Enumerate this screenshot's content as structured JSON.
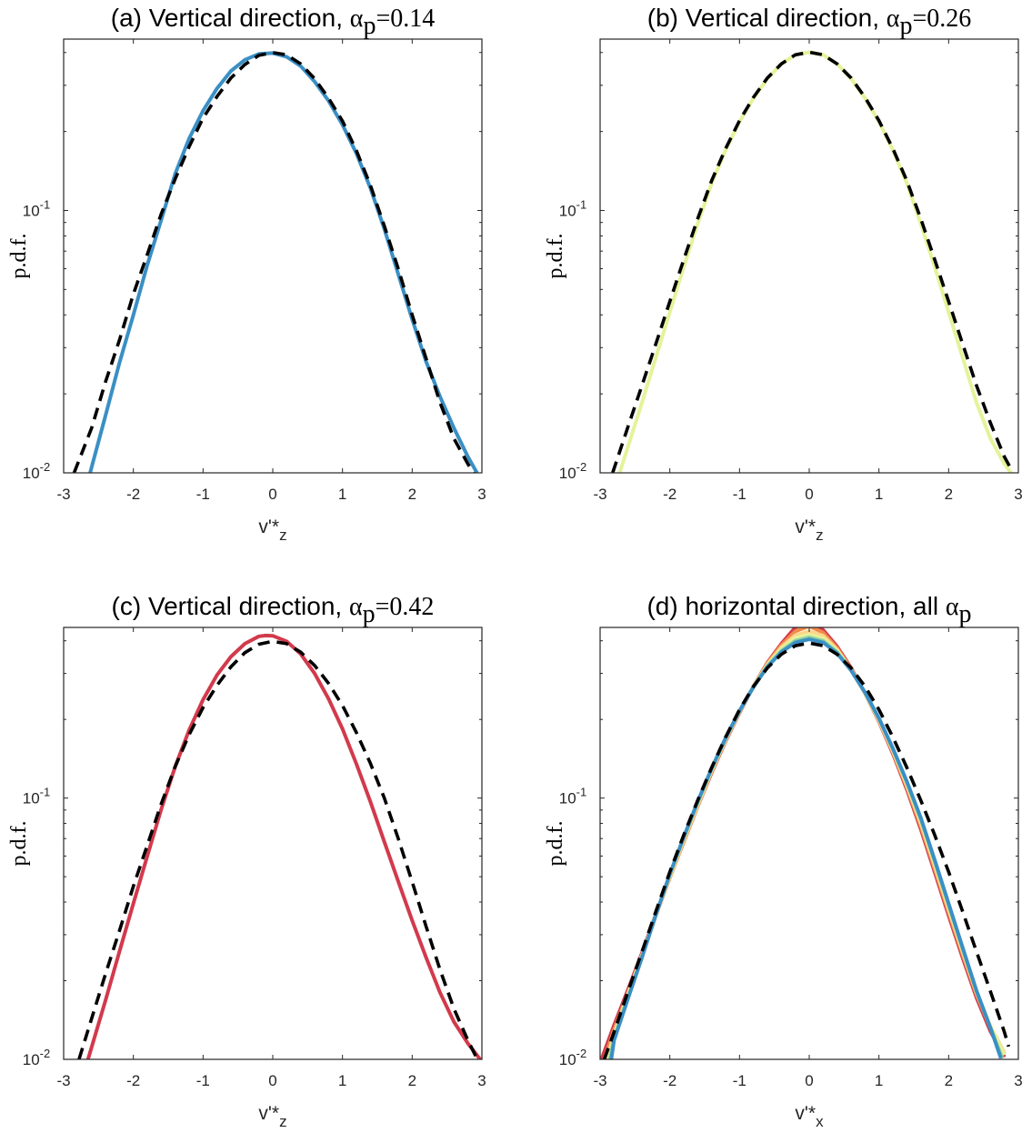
{
  "chart_data": [
    {
      "type": "line",
      "title": "(a) Vertical direction, ",
      "title_math": "α",
      "title_sub": "p",
      "title_tail": "=0.14",
      "xlabel": "v'*",
      "xlabel_sub": "z",
      "ylabel": "p.d.f.",
      "xlim": [
        -3,
        3
      ],
      "ylim": [
        0.01,
        0.45
      ],
      "yscale": "log",
      "xticks": [
        "-3",
        "-2",
        "-1",
        "0",
        "1",
        "2",
        "3"
      ],
      "yticks": [
        {
          "base": "10",
          "exp": "-2",
          "value": 0.01
        },
        {
          "base": "10",
          "exp": "-1",
          "value": 0.1
        }
      ],
      "grid": false,
      "series": [
        {
          "color": "#3a8fc4",
          "style": "solid",
          "x": [
            -2.62,
            -2.4,
            -2.2,
            -2.0,
            -1.8,
            -1.6,
            -1.4,
            -1.2,
            -1.0,
            -0.8,
            -0.6,
            -0.4,
            -0.2,
            0.0,
            0.2,
            0.4,
            0.6,
            0.8,
            1.0,
            1.2,
            1.4,
            1.6,
            1.8,
            2.0,
            2.2,
            2.4,
            2.6,
            2.8,
            2.93
          ],
          "y": [
            0.01,
            0.0165,
            0.0262,
            0.04,
            0.062,
            0.092,
            0.138,
            0.188,
            0.24,
            0.292,
            0.34,
            0.375,
            0.395,
            0.398,
            0.385,
            0.355,
            0.31,
            0.262,
            0.212,
            0.165,
            0.122,
            0.085,
            0.0572,
            0.0385,
            0.0265,
            0.0195,
            0.0148,
            0.0115,
            0.01
          ]
        },
        {
          "color": "#000000",
          "style": "dashed",
          "x": [
            -2.85,
            -2.6,
            -2.4,
            -2.2,
            -2.0,
            -1.8,
            -1.6,
            -1.4,
            -1.2,
            -1.0,
            -0.8,
            -0.6,
            -0.4,
            -0.2,
            0.0,
            0.2,
            0.4,
            0.6,
            0.8,
            1.0,
            1.2,
            1.4,
            1.6,
            1.8,
            2.0,
            2.2,
            2.4,
            2.6,
            2.8,
            2.9
          ],
          "y": [
            0.01,
            0.0148,
            0.0222,
            0.032,
            0.048,
            0.068,
            0.097,
            0.132,
            0.175,
            0.225,
            0.272,
            0.32,
            0.36,
            0.39,
            0.4,
            0.392,
            0.362,
            0.318,
            0.268,
            0.219,
            0.169,
            0.125,
            0.0872,
            0.06,
            0.04,
            0.0272,
            0.0185,
            0.0135,
            0.0108,
            0.0098
          ]
        }
      ]
    },
    {
      "type": "line",
      "title": "(b) Vertical direction, ",
      "title_math": "α",
      "title_sub": "p",
      "title_tail": "=0.26",
      "xlabel": "v'*",
      "xlabel_sub": "z",
      "ylabel": "p.d.f.",
      "xlim": [
        -3,
        3
      ],
      "ylim": [
        0.01,
        0.45
      ],
      "yscale": "log",
      "xticks": [
        "-3",
        "-2",
        "-1",
        "0",
        "1",
        "2",
        "3"
      ],
      "yticks": [
        {
          "base": "10",
          "exp": "-2",
          "value": 0.01
        },
        {
          "base": "10",
          "exp": "-1",
          "value": 0.1
        }
      ],
      "grid": false,
      "series": [
        {
          "color": "#e6f29a",
          "style": "solid",
          "x": [
            -2.72,
            -2.4,
            -2.2,
            -2.0,
            -1.8,
            -1.6,
            -1.4,
            -1.2,
            -1.0,
            -0.8,
            -0.6,
            -0.4,
            -0.2,
            0.0,
            0.2,
            0.4,
            0.6,
            0.8,
            1.0,
            1.2,
            1.4,
            1.6,
            1.8,
            2.0,
            2.2,
            2.4,
            2.6,
            2.8,
            2.92
          ],
          "y": [
            0.01,
            0.0185,
            0.0275,
            0.041,
            0.061,
            0.089,
            0.127,
            0.17,
            0.218,
            0.268,
            0.318,
            0.362,
            0.392,
            0.401,
            0.392,
            0.362,
            0.318,
            0.268,
            0.218,
            0.17,
            0.127,
            0.089,
            0.061,
            0.041,
            0.0275,
            0.0185,
            0.0135,
            0.0108,
            0.0098
          ]
        },
        {
          "color": "#000000",
          "style": "dashed",
          "x": [
            -2.82,
            -2.6,
            -2.4,
            -2.2,
            -2.0,
            -1.8,
            -1.6,
            -1.4,
            -1.2,
            -1.0,
            -0.8,
            -0.6,
            -0.4,
            -0.2,
            0.0,
            0.2,
            0.4,
            0.6,
            0.8,
            1.0,
            1.2,
            1.4,
            1.6,
            1.8,
            2.0,
            2.2,
            2.4,
            2.6,
            2.8,
            2.9
          ],
          "y": [
            0.01,
            0.015,
            0.0215,
            0.031,
            0.045,
            0.065,
            0.093,
            0.13,
            0.172,
            0.22,
            0.27,
            0.32,
            0.362,
            0.392,
            0.401,
            0.392,
            0.362,
            0.32,
            0.27,
            0.22,
            0.172,
            0.13,
            0.093,
            0.065,
            0.045,
            0.031,
            0.0215,
            0.0155,
            0.0115,
            0.0103
          ]
        }
      ]
    },
    {
      "type": "line",
      "title": "(c) Vertical direction, ",
      "title_math": "α",
      "title_sub": "p",
      "title_tail": "=0.42",
      "xlabel": "v'*",
      "xlabel_sub": "z",
      "ylabel": "p.d.f.",
      "xlim": [
        -3,
        3
      ],
      "ylim": [
        0.01,
        0.45
      ],
      "yscale": "log",
      "xticks": [
        "-3",
        "-2",
        "-1",
        "0",
        "1",
        "2",
        "3"
      ],
      "yticks": [
        {
          "base": "10",
          "exp": "-2",
          "value": 0.01
        },
        {
          "base": "10",
          "exp": "-1",
          "value": 0.1
        }
      ],
      "grid": false,
      "series": [
        {
          "color": "#d23a4c",
          "style": "solid",
          "x": [
            -2.65,
            -2.4,
            -2.2,
            -2.0,
            -1.8,
            -1.6,
            -1.4,
            -1.2,
            -1.0,
            -0.8,
            -0.6,
            -0.4,
            -0.2,
            -0.1,
            0.0,
            0.2,
            0.4,
            0.6,
            0.8,
            1.0,
            1.2,
            1.4,
            1.6,
            1.8,
            2.0,
            2.2,
            2.4,
            2.6,
            2.8,
            3.0
          ],
          "y": [
            0.01,
            0.0168,
            0.0258,
            0.0395,
            0.06,
            0.0905,
            0.132,
            0.182,
            0.238,
            0.296,
            0.348,
            0.39,
            0.416,
            0.419,
            0.418,
            0.398,
            0.356,
            0.3,
            0.24,
            0.184,
            0.135,
            0.097,
            0.068,
            0.048,
            0.034,
            0.0245,
            0.018,
            0.0139,
            0.0115,
            0.0098
          ]
        },
        {
          "color": "#000000",
          "style": "dashed",
          "x": [
            -2.78,
            -2.6,
            -2.4,
            -2.2,
            -2.0,
            -1.8,
            -1.6,
            -1.4,
            -1.2,
            -1.0,
            -0.8,
            -0.6,
            -0.4,
            -0.2,
            0.0,
            0.2,
            0.4,
            0.6,
            0.8,
            1.0,
            1.2,
            1.4,
            1.6,
            1.8,
            2.0,
            2.2,
            2.4,
            2.6,
            2.8,
            2.95
          ],
          "y": [
            0.01,
            0.0143,
            0.0212,
            0.031,
            0.046,
            0.066,
            0.095,
            0.132,
            0.175,
            0.222,
            0.27,
            0.318,
            0.36,
            0.388,
            0.398,
            0.39,
            0.362,
            0.322,
            0.275,
            0.226,
            0.178,
            0.136,
            0.1,
            0.07,
            0.0478,
            0.0322,
            0.022,
            0.0156,
            0.0118,
            0.0098
          ]
        }
      ]
    },
    {
      "type": "line",
      "title": "(d) horizontal direction, all ",
      "title_math": "α",
      "title_sub": "p",
      "title_tail": "",
      "xlabel": "v'*",
      "xlabel_sub": "x",
      "ylabel": "p.d.f.",
      "xlim": [
        -3,
        3
      ],
      "ylim": [
        0.01,
        0.45
      ],
      "yscale": "log",
      "xticks": [
        "-3",
        "-2",
        "-1",
        "0",
        "1",
        "2",
        "3"
      ],
      "yticks": [
        {
          "base": "10",
          "exp": "-2",
          "value": 0.01
        },
        {
          "base": "10",
          "exp": "-1",
          "value": 0.1
        }
      ],
      "grid": false,
      "series": [
        {
          "color": "#d23a4c",
          "style": "solid",
          "x": [
            -2.98,
            -2.8,
            -2.6,
            -2.4,
            -2.2,
            -2.0,
            -1.8,
            -1.6,
            -1.4,
            -1.2,
            -1.0,
            -0.8,
            -0.6,
            -0.4,
            -0.2,
            0.0,
            0.2,
            0.4,
            0.6,
            0.8,
            1.0,
            1.2,
            1.4,
            1.6,
            1.8,
            2.0,
            2.2,
            2.4,
            2.6,
            2.8
          ],
          "y": [
            0.01,
            0.0135,
            0.0185,
            0.0255,
            0.036,
            0.05,
            0.068,
            0.093,
            0.125,
            0.165,
            0.212,
            0.268,
            0.33,
            0.39,
            0.45,
            0.478,
            0.44,
            0.38,
            0.315,
            0.252,
            0.196,
            0.148,
            0.108,
            0.076,
            0.052,
            0.0355,
            0.0245,
            0.0172,
            0.0128,
            0.0102
          ]
        },
        {
          "color": "#f08a4b",
          "style": "solid",
          "x": [
            -2.94,
            -2.8,
            -2.6,
            -2.4,
            -2.2,
            -2.0,
            -1.8,
            -1.6,
            -1.4,
            -1.2,
            -1.0,
            -0.8,
            -0.6,
            -0.4,
            -0.2,
            0.0,
            0.2,
            0.4,
            0.6,
            0.8,
            1.0,
            1.2,
            1.4,
            1.6,
            1.8,
            2.0,
            2.2,
            2.4,
            2.6,
            2.8
          ],
          "y": [
            0.01,
            0.013,
            0.018,
            0.025,
            0.0355,
            0.0495,
            0.068,
            0.093,
            0.126,
            0.166,
            0.213,
            0.268,
            0.328,
            0.385,
            0.435,
            0.455,
            0.43,
            0.375,
            0.312,
            0.252,
            0.197,
            0.15,
            0.11,
            0.078,
            0.0535,
            0.0365,
            0.0252,
            0.0177,
            0.0132,
            0.0105
          ]
        },
        {
          "color": "#fdd58a",
          "style": "solid",
          "x": [
            -2.9,
            -2.8,
            -2.6,
            -2.4,
            -2.2,
            -2.0,
            -1.8,
            -1.6,
            -1.4,
            -1.2,
            -1.0,
            -0.8,
            -0.6,
            -0.4,
            -0.2,
            0.0,
            0.2,
            0.4,
            0.6,
            0.8,
            1.0,
            1.2,
            1.4,
            1.6,
            1.8,
            2.0,
            2.2,
            2.4,
            2.6,
            2.8
          ],
          "y": [
            0.01,
            0.0125,
            0.0178,
            0.025,
            0.0358,
            0.05,
            0.069,
            0.094,
            0.127,
            0.167,
            0.214,
            0.268,
            0.325,
            0.378,
            0.42,
            0.435,
            0.418,
            0.37,
            0.31,
            0.252,
            0.198,
            0.151,
            0.112,
            0.08,
            0.055,
            0.0375,
            0.0258,
            0.018,
            0.0134,
            0.0106
          ]
        },
        {
          "color": "#e6f29a",
          "style": "solid",
          "x": [
            -2.88,
            -2.8,
            -2.6,
            -2.4,
            -2.2,
            -2.0,
            -1.8,
            -1.6,
            -1.4,
            -1.2,
            -1.0,
            -0.8,
            -0.6,
            -0.4,
            -0.2,
            0.0,
            0.2,
            0.4,
            0.6,
            0.8,
            1.0,
            1.2,
            1.4,
            1.6,
            1.8,
            2.0,
            2.2,
            2.4,
            2.6,
            2.8
          ],
          "y": [
            0.01,
            0.0122,
            0.0175,
            0.0248,
            0.0358,
            0.0505,
            0.07,
            0.0955,
            0.128,
            0.168,
            0.215,
            0.268,
            0.322,
            0.372,
            0.41,
            0.422,
            0.408,
            0.366,
            0.31,
            0.253,
            0.2,
            0.153,
            0.114,
            0.082,
            0.0565,
            0.0385,
            0.0262,
            0.0182,
            0.0134,
            0.0104
          ]
        },
        {
          "color": "#8ccfa2",
          "style": "solid",
          "x": [
            -2.86,
            -2.8,
            -2.6,
            -2.4,
            -2.2,
            -2.0,
            -1.8,
            -1.6,
            -1.4,
            -1.2,
            -1.0,
            -0.8,
            -0.6,
            -0.4,
            -0.2,
            0.0,
            0.2,
            0.4,
            0.6,
            0.8,
            1.0,
            1.2,
            1.4,
            1.6,
            1.8,
            2.0,
            2.2,
            2.4,
            2.6,
            2.77
          ],
          "y": [
            0.01,
            0.012,
            0.0173,
            0.0247,
            0.0358,
            0.051,
            0.0705,
            0.0962,
            0.129,
            0.169,
            0.215,
            0.267,
            0.32,
            0.366,
            0.4,
            0.412,
            0.4,
            0.362,
            0.309,
            0.254,
            0.201,
            0.154,
            0.115,
            0.083,
            0.0572,
            0.039,
            0.0265,
            0.0182,
            0.0132,
            0.0101
          ]
        },
        {
          "color": "#3a8fc4",
          "style": "solid",
          "x": [
            -2.84,
            -2.8,
            -2.6,
            -2.4,
            -2.2,
            -2.0,
            -1.8,
            -1.6,
            -1.4,
            -1.2,
            -1.0,
            -0.8,
            -0.6,
            -0.4,
            -0.2,
            0.0,
            0.2,
            0.4,
            0.6,
            0.8,
            1.0,
            1.2,
            1.4,
            1.6,
            1.8,
            2.0,
            2.2,
            2.4,
            2.6,
            2.75
          ],
          "y": [
            0.01,
            0.0118,
            0.0171,
            0.0245,
            0.0357,
            0.0512,
            0.071,
            0.097,
            0.13,
            0.17,
            0.216,
            0.266,
            0.318,
            0.362,
            0.394,
            0.405,
            0.394,
            0.358,
            0.308,
            0.254,
            0.202,
            0.155,
            0.116,
            0.084,
            0.058,
            0.0395,
            0.0268,
            0.0183,
            0.0132,
            0.0101
          ]
        },
        {
          "color": "#000000",
          "style": "dashed",
          "x": [
            -2.94,
            -2.8,
            -2.6,
            -2.4,
            -2.2,
            -2.0,
            -1.8,
            -1.6,
            -1.4,
            -1.2,
            -1.0,
            -0.8,
            -0.6,
            -0.4,
            -0.2,
            0.0,
            0.2,
            0.4,
            0.6,
            0.8,
            1.0,
            1.2,
            1.4,
            1.6,
            1.8,
            2.0,
            2.2,
            2.4,
            2.6,
            2.8,
            2.86
          ],
          "y": [
            0.01,
            0.0127,
            0.0182,
            0.0258,
            0.0368,
            0.0522,
            0.0722,
            0.098,
            0.131,
            0.171,
            0.218,
            0.268,
            0.315,
            0.355,
            0.383,
            0.392,
            0.383,
            0.355,
            0.315,
            0.268,
            0.218,
            0.171,
            0.131,
            0.098,
            0.0722,
            0.0522,
            0.0368,
            0.0258,
            0.0182,
            0.0127,
            0.0112
          ]
        }
      ]
    }
  ]
}
